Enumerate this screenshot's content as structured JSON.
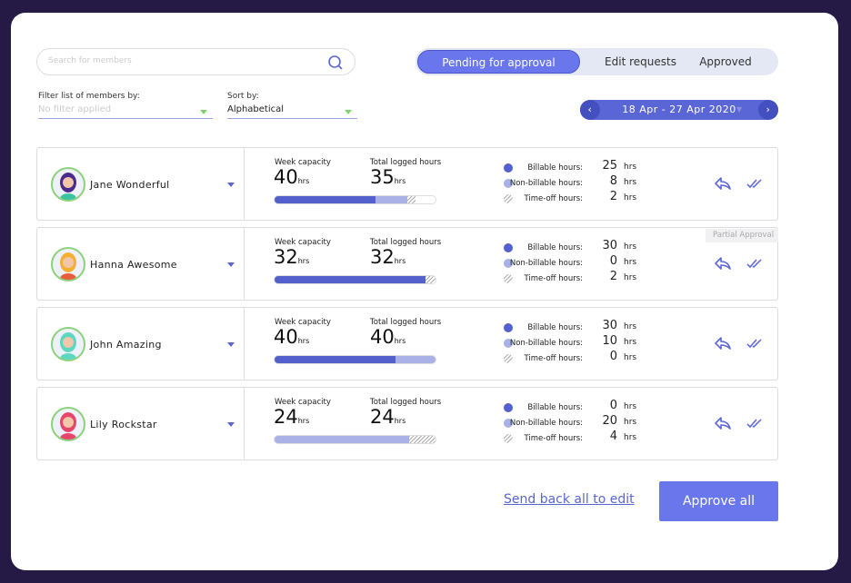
{
  "search": {
    "placeholder": "Search for members"
  },
  "tabs": [
    {
      "label": "Pending for approval",
      "active": true
    },
    {
      "label": "Edit requests"
    },
    {
      "label": "Approved"
    }
  ],
  "filter": {
    "label": "Filter list of members by:",
    "value": "No filter applied"
  },
  "sort": {
    "label": "Sort by:",
    "value": "Alphabetical"
  },
  "date_range": "18 Apr - 27 Apr 2020",
  "labels": {
    "capacity": "Week capacity",
    "logged": "Total logged hours",
    "hrs": "hrs",
    "billable": "Billable hours:",
    "nonbillable": "Non-billable hours:",
    "timeoff": "Time-off hours:"
  },
  "colors": {
    "billable": "#5460cc",
    "nonbillable": "#aab1e6",
    "accent": "#6a77ec"
  },
  "members": [
    {
      "name": "Jane Wonderful",
      "capacity": "40",
      "logged": "35",
      "billable": "25",
      "nonbillable": "8",
      "timeoff": "2",
      "hair": "#4a2a8c",
      "shirt": "#3cc3a0"
    },
    {
      "name": "Hanna Awesome",
      "capacity": "32",
      "logged": "32",
      "billable": "30",
      "nonbillable": "0",
      "timeoff": "2",
      "hair": "#f2b134",
      "shirt": "#e85d3a"
    },
    {
      "name": "John Amazing",
      "capacity": "40",
      "logged": "40",
      "billable": "30",
      "nonbillable": "10",
      "timeoff": "0",
      "hair": "#5fd6c0",
      "shirt": "#5fd6c0"
    },
    {
      "name": "Lily Rockstar",
      "capacity": "24",
      "logged": "24",
      "billable": "0",
      "nonbillable": "20",
      "timeoff": "4",
      "hair": "#e8456b",
      "shirt": "#e8456b"
    }
  ],
  "partial_tooltip": "Partial Approval",
  "footer": {
    "send_back": "Send back all to edit",
    "approve_all": "Approve all"
  }
}
